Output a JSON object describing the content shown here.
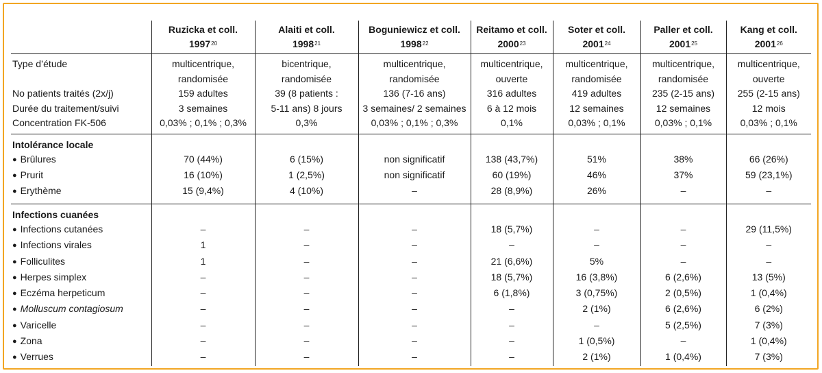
{
  "columns": [
    {
      "name": "Ruzicka et coll.",
      "year": "1997",
      "ref": "20"
    },
    {
      "name": "Alaiti et coll.",
      "year": "1998",
      "ref": "21"
    },
    {
      "name": "Boguniewicz et coll.",
      "year": "1998",
      "ref": "22"
    },
    {
      "name": "Reitamo et coll.",
      "year": "2000",
      "ref": "23"
    },
    {
      "name": "Soter et coll.",
      "year": "2001",
      "ref": "24"
    },
    {
      "name": "Paller et coll.",
      "year": "2001",
      "ref": "25"
    },
    {
      "name": "Kang et coll.",
      "year": "2001",
      "ref": "26"
    }
  ],
  "study": {
    "labels": [
      "Type d’étude",
      "No patients traités (2x/j)",
      "Durée du traitement/suivi",
      "Concentration FK-506"
    ],
    "cells": [
      [
        "multicentrique,",
        "randomisée",
        "159 adultes",
        "3 semaines",
        "0,03% ; 0,1% ; 0,3%"
      ],
      [
        "bicentrique,",
        "randomisée",
        "39 (8 patients :",
        "5-11 ans) 8 jours",
        "0,3%"
      ],
      [
        "multicentrique,",
        "randomisée",
        "136 (7-16 ans)",
        "3 semaines/ 2 semaines",
        "0,03% ; 0,1% ; 0,3%"
      ],
      [
        "multicentrique,",
        "ouverte",
        "316 adultes",
        "6 à 12 mois",
        "0,1%"
      ],
      [
        "multicentrique,",
        "randomisée",
        "419 adultes",
        "12 semaines",
        "0,03% ; 0,1%"
      ],
      [
        "multicentrique,",
        "randomisée",
        "235 (2-15 ans)",
        "12 semaines",
        "0,03% ; 0,1%"
      ],
      [
        "multicentrique,",
        "ouverte",
        "255 (2-15 ans)",
        "12 mois",
        "0,03% ; 0,1%"
      ]
    ]
  },
  "sections": [
    {
      "title": "Intolérance locale",
      "rows": [
        {
          "label": "Brûlures",
          "italic": false,
          "values": [
            "70 (44%)",
            "6 (15%)",
            "non significatif",
            "138 (43,7%)",
            "51%",
            "38%",
            "66 (26%)"
          ]
        },
        {
          "label": "Prurit",
          "italic": false,
          "values": [
            "16 (10%)",
            "1 (2,5%)",
            "non significatif",
            "60 (19%)",
            "46%",
            "37%",
            "59 (23,1%)"
          ]
        },
        {
          "label": "Erythème",
          "italic": false,
          "values": [
            "15 (9,4%)",
            "4 (10%)",
            "–",
            "28 (8,9%)",
            "26%",
            "–",
            "–"
          ]
        }
      ]
    },
    {
      "title": "Infections cuanées",
      "rows": [
        {
          "label": "Infections cutanées",
          "italic": false,
          "values": [
            "–",
            "–",
            "–",
            "18 (5,7%)",
            "–",
            "–",
            "29 (11,5%)"
          ]
        },
        {
          "label": "Infections virales",
          "italic": false,
          "values": [
            "1",
            "–",
            "–",
            "–",
            "–",
            "–",
            "–"
          ]
        },
        {
          "label": "Folliculites",
          "italic": false,
          "values": [
            "1",
            "–",
            "–",
            "21 (6,6%)",
            "5%",
            "–",
            "–"
          ]
        },
        {
          "label": "Herpes simplex",
          "italic": false,
          "values": [
            "–",
            "–",
            "–",
            "18 (5,7%)",
            "16 (3,8%)",
            "6 (2,6%)",
            "13 (5%)"
          ]
        },
        {
          "label": "Eczéma herpeticum",
          "italic": false,
          "values": [
            "–",
            "–",
            "–",
            "6 (1,8%)",
            "3 (0,75%)",
            "2 (0,5%)",
            "1 (0,4%)"
          ]
        },
        {
          "label": "Molluscum contagiosum",
          "italic": true,
          "values": [
            "–",
            "–",
            "–",
            "–",
            "2 (1%)",
            "6 (2,6%)",
            "6 (2%)"
          ]
        },
        {
          "label": "Varicelle",
          "italic": false,
          "values": [
            "–",
            "–",
            "–",
            "–",
            "–",
            "5 (2,5%)",
            "7 (3%)"
          ]
        },
        {
          "label": "Zona",
          "italic": false,
          "values": [
            "–",
            "–",
            "–",
            "–",
            "1 (0,5%)",
            "–",
            "1 (0,4%)"
          ]
        },
        {
          "label": "Verrues",
          "italic": false,
          "values": [
            "–",
            "–",
            "–",
            "–",
            "2 (1%)",
            "1 (0,4%)",
            "7 (3%)"
          ]
        }
      ]
    }
  ]
}
